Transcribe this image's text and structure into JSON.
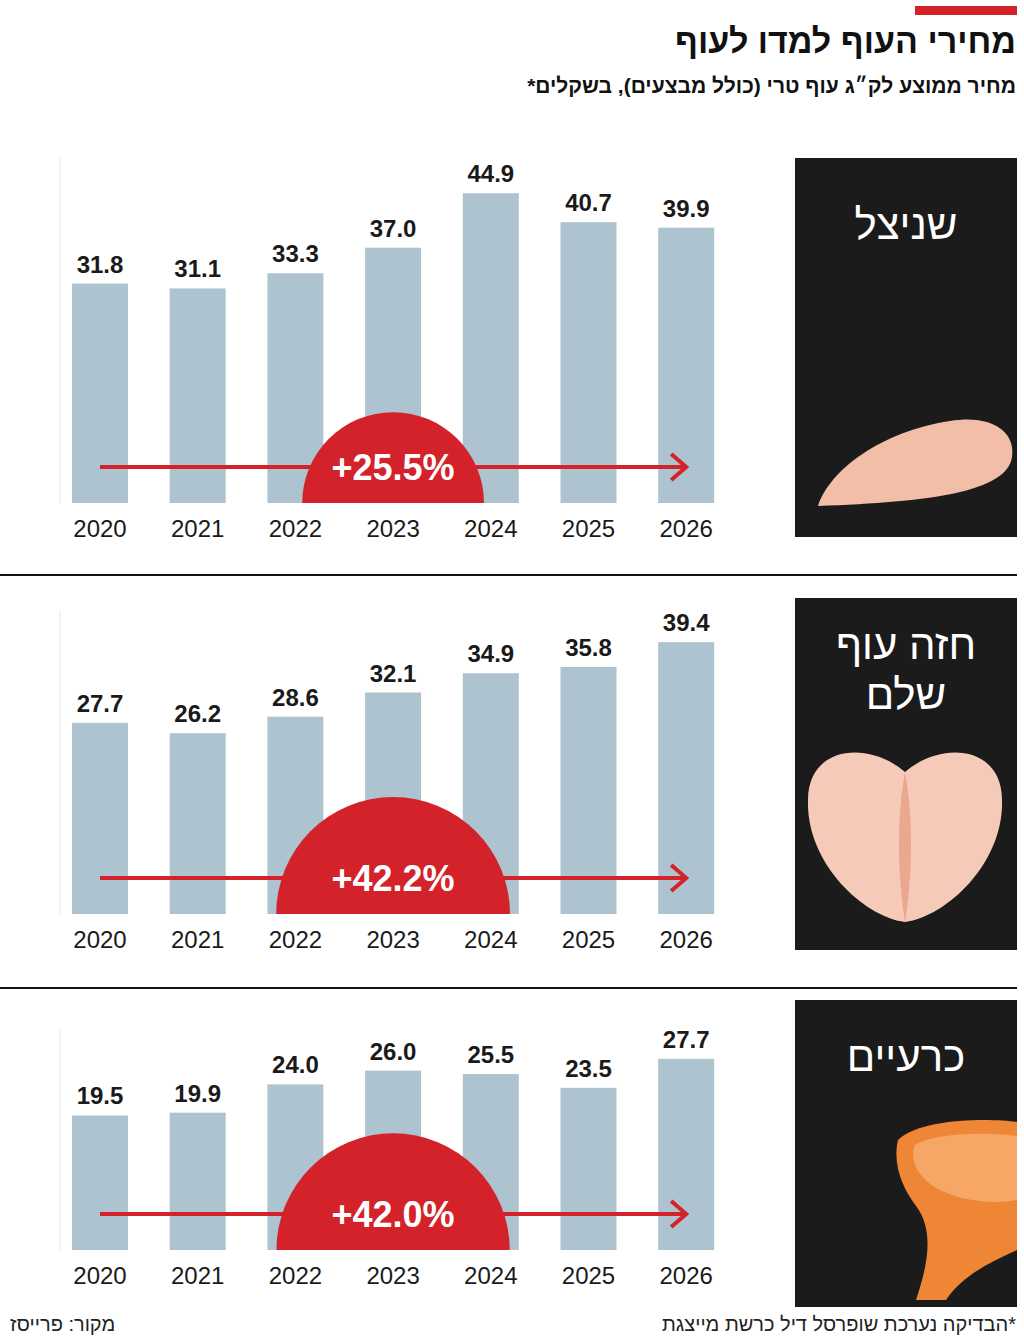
{
  "header": {
    "title": "מחירי העוף למדו לעוף",
    "subtitle": "מחיר ממוצע לק״ג עוף טרי (כולל מבצעים), בשקלים*"
  },
  "chart_data": [
    {
      "type": "bar",
      "title": "שניצל",
      "categories": [
        "2020",
        "2021",
        "2022",
        "2023",
        "2024",
        "2025",
        "2026"
      ],
      "values": [
        31.8,
        31.1,
        33.3,
        37.0,
        44.9,
        40.7,
        39.9
      ],
      "value_labels": [
        "31.8",
        "31.1",
        "33.3",
        "37.0",
        "44.9",
        "40.7",
        "39.9"
      ],
      "color": "#adc4d0",
      "ylim": [
        0,
        50
      ],
      "data_labels": true,
      "tick_labels": "x",
      "annotation": {
        "value": 25.5,
        "label": "+25.5%"
      }
    },
    {
      "type": "bar",
      "title": "חזה עוף שלם",
      "categories": [
        "2020",
        "2021",
        "2022",
        "2023",
        "2024",
        "2025",
        "2026"
      ],
      "values": [
        27.7,
        26.2,
        28.6,
        32.1,
        34.9,
        35.8,
        39.4
      ],
      "value_labels": [
        "27.7",
        "26.2",
        "28.6",
        "32.1",
        "34.9",
        "35.8",
        "39.4"
      ],
      "color": "#adc4d0",
      "ylim": [
        0,
        44
      ],
      "data_labels": true,
      "tick_labels": "x",
      "annotation": {
        "value": 42.2,
        "label": "+42.2%"
      }
    },
    {
      "type": "bar",
      "title": "כרעיים",
      "categories": [
        "2020",
        "2021",
        "2022",
        "2023",
        "2024",
        "2025",
        "2026"
      ],
      "values": [
        19.5,
        19.9,
        24.0,
        26.0,
        25.5,
        23.5,
        27.7
      ],
      "value_labels": [
        "19.5",
        "19.9",
        "24.0",
        "26.0",
        "25.5",
        "23.5",
        "27.7"
      ],
      "color": "#adc4d0",
      "ylim": [
        0,
        32
      ],
      "data_labels": true,
      "tick_labels": "x",
      "annotation": {
        "value": 42.0,
        "label": "+42.0%"
      }
    }
  ],
  "footer": {
    "note": "*הבדיקה נערכת שופרסל דיל כרשת מייצגת",
    "source": "מקור: פרייסז"
  }
}
